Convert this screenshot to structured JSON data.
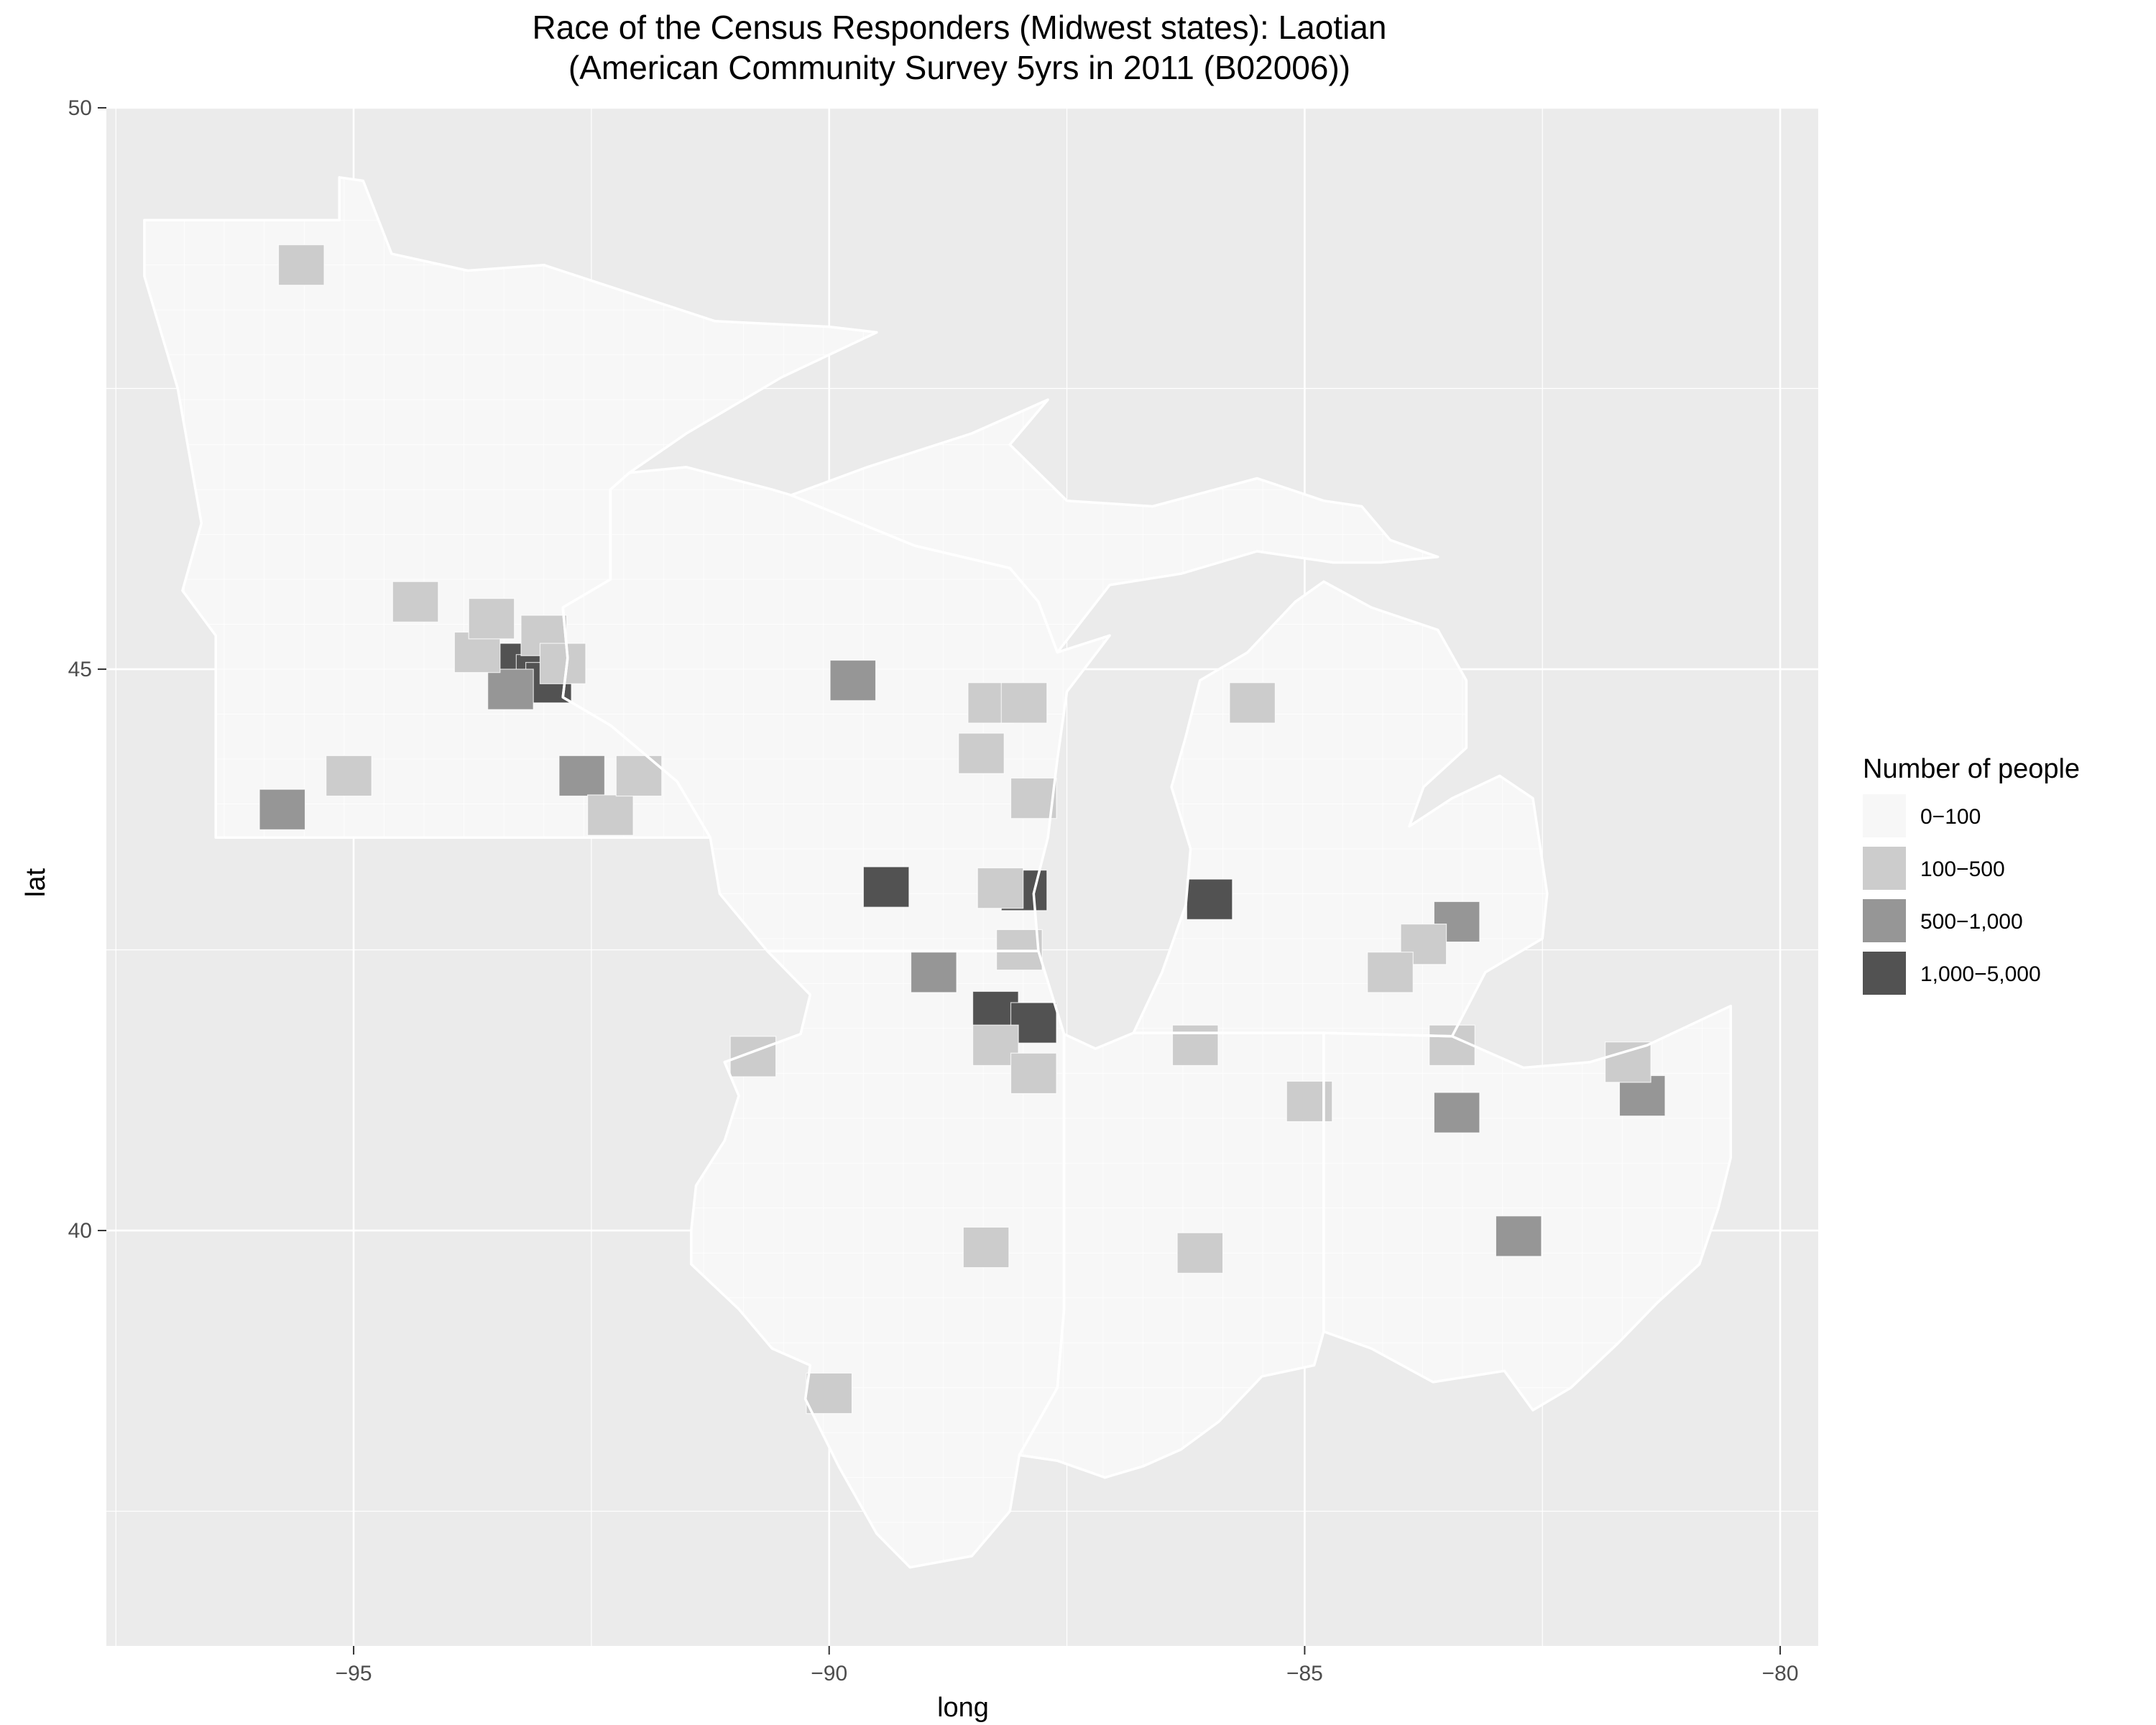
{
  "title": {
    "line1": "Race of the Census Responders (Midwest states): Laotian",
    "line2": "(American Community Survey 5yrs in 2011 (B02006))"
  },
  "axes": {
    "x": {
      "label": "long",
      "range": [
        -97.6,
        -79.6
      ],
      "ticks": [
        -95,
        -90,
        -85,
        -80
      ],
      "tick_labels": [
        "−95",
        "−90",
        "−85",
        "−80"
      ]
    },
    "y": {
      "label": "lat",
      "range": [
        36.3,
        50.0
      ],
      "ticks": [
        40,
        45,
        50
      ],
      "tick_labels": [
        "40",
        "45",
        "50"
      ]
    }
  },
  "legend": {
    "title": "Number of people",
    "placement": "right",
    "items": [
      {
        "label": "0−100",
        "color": "#f7f7f7"
      },
      {
        "label": "100−500",
        "color": "#cccccc"
      },
      {
        "label": "500−1,000",
        "color": "#969696"
      },
      {
        "label": "1,000−5,000",
        "color": "#525252"
      }
    ]
  },
  "colors": {
    "panel": "#ebebeb",
    "grid": "#ffffff",
    "base_fill": "#f7f7f7"
  },
  "chart_data": {
    "type": "choropleth",
    "grid": true,
    "region": "Midwest states (Minnesota, Wisconsin, Michigan, Illinois, Indiana, Ohio)",
    "highlighted_counties": [
      {
        "bin": 3,
        "lon": -93.25,
        "lat": 45.05
      },
      {
        "bin": 3,
        "lon": -93.05,
        "lat": 44.95
      },
      {
        "bin": 3,
        "lon": -92.95,
        "lat": 44.88
      },
      {
        "bin": 3,
        "lon": -89.4,
        "lat": 43.06
      },
      {
        "bin": 3,
        "lon": -87.95,
        "lat": 43.03
      },
      {
        "bin": 3,
        "lon": -86.0,
        "lat": 42.95
      },
      {
        "bin": 3,
        "lon": -88.25,
        "lat": 41.95
      },
      {
        "bin": 3,
        "lon": -87.85,
        "lat": 41.85
      },
      {
        "bin": 2,
        "lon": -93.35,
        "lat": 44.82
      },
      {
        "bin": 2,
        "lon": -89.75,
        "lat": 44.9
      },
      {
        "bin": 2,
        "lon": -92.6,
        "lat": 44.05
      },
      {
        "bin": 2,
        "lon": -95.75,
        "lat": 43.75
      },
      {
        "bin": 2,
        "lon": -88.9,
        "lat": 42.3
      },
      {
        "bin": 2,
        "lon": -83.4,
        "lat": 42.75
      },
      {
        "bin": 2,
        "lon": -83.4,
        "lat": 41.05
      },
      {
        "bin": 2,
        "lon": -81.45,
        "lat": 41.2
      },
      {
        "bin": 2,
        "lon": -82.75,
        "lat": 39.95
      },
      {
        "bin": 1,
        "lon": -95.55,
        "lat": 48.6
      },
      {
        "bin": 1,
        "lon": -94.35,
        "lat": 45.6
      },
      {
        "bin": 1,
        "lon": -93.7,
        "lat": 45.15
      },
      {
        "bin": 1,
        "lon": -93.55,
        "lat": 45.45
      },
      {
        "bin": 1,
        "lon": -93.0,
        "lat": 45.3
      },
      {
        "bin": 1,
        "lon": -92.8,
        "lat": 45.05
      },
      {
        "bin": 1,
        "lon": -95.05,
        "lat": 44.05
      },
      {
        "bin": 1,
        "lon": -92.3,
        "lat": 43.7
      },
      {
        "bin": 1,
        "lon": -92.0,
        "lat": 44.05
      },
      {
        "bin": 1,
        "lon": -88.3,
        "lat": 44.7
      },
      {
        "bin": 1,
        "lon": -87.95,
        "lat": 44.7
      },
      {
        "bin": 1,
        "lon": -88.4,
        "lat": 44.25
      },
      {
        "bin": 1,
        "lon": -87.85,
        "lat": 43.85
      },
      {
        "bin": 1,
        "lon": -88.2,
        "lat": 43.05
      },
      {
        "bin": 1,
        "lon": -88.0,
        "lat": 42.5
      },
      {
        "bin": 1,
        "lon": -88.25,
        "lat": 41.65
      },
      {
        "bin": 1,
        "lon": -87.85,
        "lat": 41.4
      },
      {
        "bin": 1,
        "lon": -86.15,
        "lat": 41.65
      },
      {
        "bin": 1,
        "lon": -84.95,
        "lat": 41.15
      },
      {
        "bin": 1,
        "lon": -85.55,
        "lat": 44.7
      },
      {
        "bin": 1,
        "lon": -83.75,
        "lat": 42.55
      },
      {
        "bin": 1,
        "lon": -84.1,
        "lat": 42.3
      },
      {
        "bin": 1,
        "lon": -83.45,
        "lat": 41.65
      },
      {
        "bin": 1,
        "lon": -81.6,
        "lat": 41.5
      },
      {
        "bin": 1,
        "lon": -88.35,
        "lat": 39.85
      },
      {
        "bin": 1,
        "lon": -86.1,
        "lat": 39.8
      },
      {
        "bin": 1,
        "lon": -90.0,
        "lat": 38.55
      },
      {
        "bin": 1,
        "lon": -90.8,
        "lat": 41.55
      }
    ]
  }
}
